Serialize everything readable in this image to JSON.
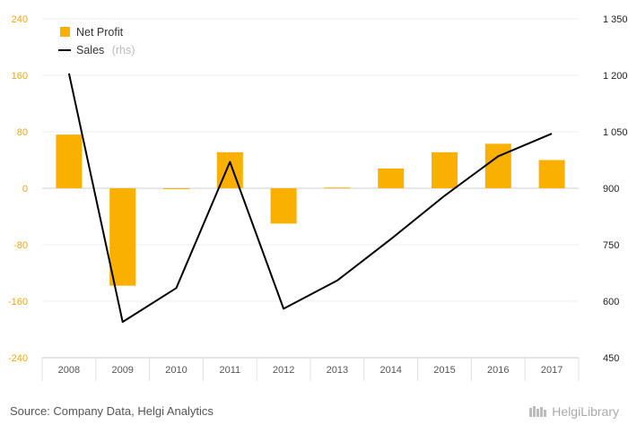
{
  "chart_data": {
    "type": "bar",
    "categories": [
      "2008",
      "2009",
      "2010",
      "2011",
      "2012",
      "2013",
      "2014",
      "2015",
      "2016",
      "2017"
    ],
    "series": [
      {
        "name": "Net Profit",
        "type": "bar",
        "axis": "left",
        "color": "#f9b000",
        "values": [
          76,
          -138,
          -1,
          51,
          -50,
          1,
          28,
          51,
          63,
          40
        ]
      },
      {
        "name": "Sales",
        "type": "line",
        "axis": "right",
        "color": "#000000",
        "values": [
          1205,
          545,
          635,
          970,
          580,
          655,
          765,
          880,
          985,
          1045
        ]
      }
    ],
    "y_left": {
      "ylim": [
        -240,
        240
      ],
      "ticks": [
        240,
        160,
        80,
        0,
        -80,
        -160,
        -240
      ]
    },
    "y_right": {
      "ylim": [
        450,
        1350
      ],
      "tick_labels": [
        "1 350",
        "1 200",
        "1 050",
        "900",
        "750",
        "600",
        "450"
      ]
    },
    "legend": [
      {
        "label": "Net Profit",
        "note": ""
      },
      {
        "label": "Sales",
        "note": "(rhs)"
      }
    ],
    "legend_position": "top-left",
    "grid": true
  },
  "footer": {
    "source": "Source: Company Data, Helgi Analytics",
    "brand": "HelgiLibrary"
  }
}
